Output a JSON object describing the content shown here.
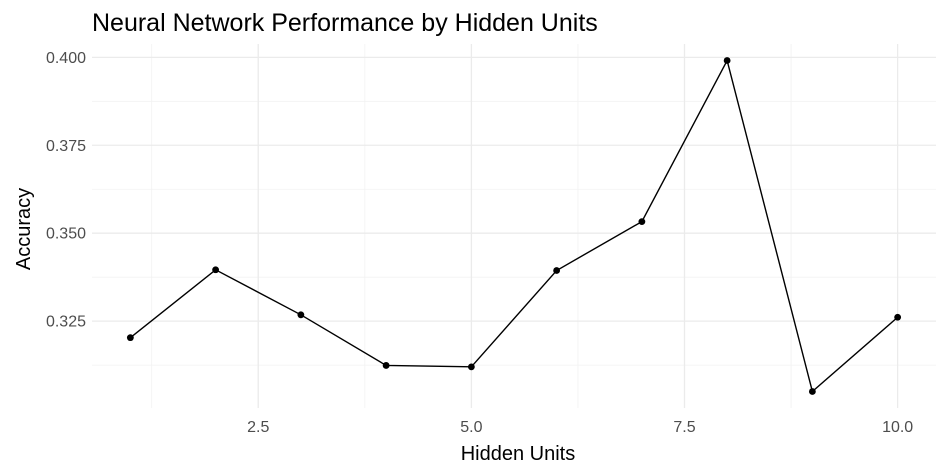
{
  "chart_data": {
    "type": "line",
    "title": "Neural Network Performance by Hidden Units",
    "xlabel": "Hidden Units",
    "ylabel": "Accuracy",
    "x": [
      1,
      2,
      3,
      4,
      5,
      6,
      7,
      8,
      9,
      10
    ],
    "series": [
      {
        "values": [
          0.3203,
          0.3396,
          0.3268,
          0.3124,
          0.312,
          0.3394,
          0.3533,
          0.3991,
          0.305,
          0.3261
        ]
      }
    ],
    "xlim": [
      0.55,
      10.45
    ],
    "ylim": [
      0.3003,
      0.4038
    ],
    "x_ticks": [
      2.5,
      5.0,
      7.5,
      10.0
    ],
    "x_tick_labels": [
      "2.5",
      "5.0",
      "7.5",
      "10.0"
    ],
    "y_ticks": [
      0.325,
      0.35,
      0.375,
      0.4
    ],
    "y_tick_labels": [
      "0.325",
      "0.350",
      "0.375",
      "0.400"
    ],
    "grid": true,
    "legend": "none",
    "colors": {
      "line": "#000000",
      "grid": "#ebebeb",
      "tick_text": "#4d4d4d"
    }
  }
}
